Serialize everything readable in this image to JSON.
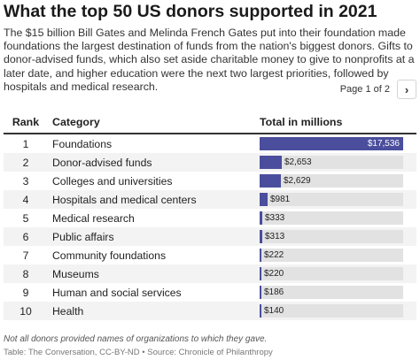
{
  "title": "What the top 50 US donors supported in 2021",
  "subtitle": "The $15 billion Bill Gates and Melinda French Gates put into their foundation made foundations the largest destination of funds from the nation's biggest donors. Gifts to donor-advised funds, which also set aside charitable money to give to nonprofits at a later date, and higher education were the next two largest priorities, followed by hospitals and medical research.",
  "pager": {
    "label": "Page 1 of 2",
    "next_icon": "chevron-right-icon"
  },
  "chart_data": {
    "type": "table",
    "columns": [
      "Rank",
      "Category",
      "Total in millions"
    ],
    "rows": [
      {
        "rank": "1",
        "category": "Foundations",
        "value": 17536,
        "label": "$17,536"
      },
      {
        "rank": "2",
        "category": "Donor-advised funds",
        "value": 2653,
        "label": "$2,653"
      },
      {
        "rank": "3",
        "category": "Colleges and universities",
        "value": 2629,
        "label": "$2,629"
      },
      {
        "rank": "4",
        "category": "Hospitals and medical centers",
        "value": 981,
        "label": "$981"
      },
      {
        "rank": "5",
        "category": "Medical research",
        "value": 333,
        "label": "$333"
      },
      {
        "rank": "6",
        "category": "Public affairs",
        "value": 313,
        "label": "$313"
      },
      {
        "rank": "7",
        "category": "Community foundations",
        "value": 222,
        "label": "$222"
      },
      {
        "rank": "8",
        "category": "Museums",
        "value": 220,
        "label": "$220"
      },
      {
        "rank": "9",
        "category": "Human and social services",
        "value": 186,
        "label": "$186"
      },
      {
        "rank": "10",
        "category": "Health",
        "value": 140,
        "label": "$140"
      }
    ],
    "bar_max": 17536,
    "bar_color": "#4a4e9c",
    "track_color": "#e2e2e2"
  },
  "footnote": "Not all donors provided names of organizations to which they gave.",
  "source": "Table: The Conversation, CC-BY-ND • Source: Chronicle of Philanthropy"
}
